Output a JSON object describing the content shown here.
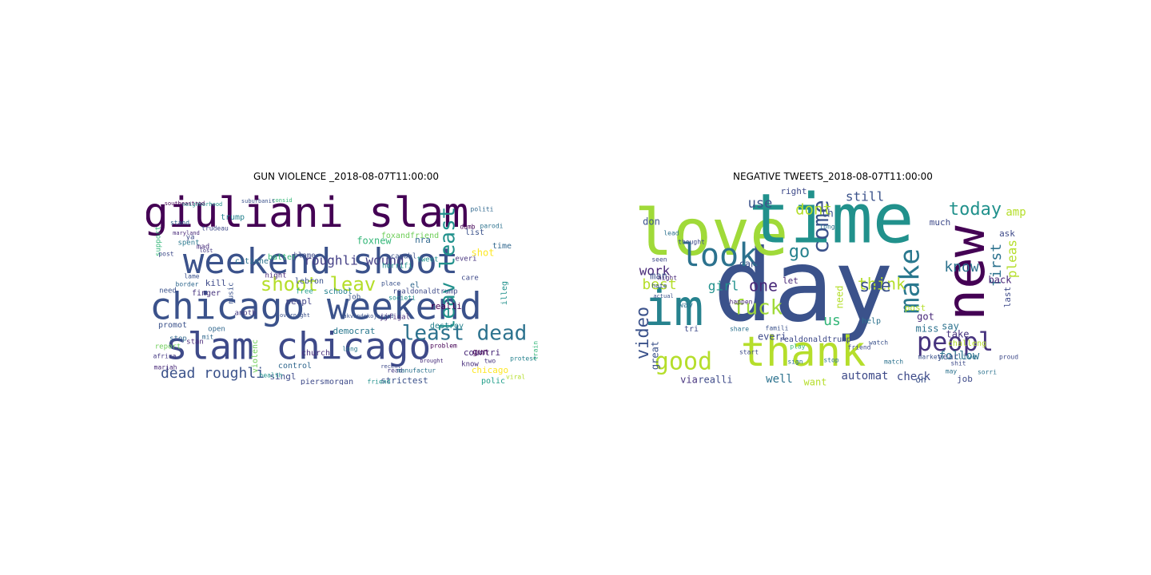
{
  "figure": {
    "panels": [
      {
        "title": "GUN VIOLENCE _2018-08-07T11:00:00",
        "words": [
          {
            "text": "giuliani slam",
            "color": "#440154"
          },
          {
            "text": "weekend shoot",
            "color": "#3b528b"
          },
          {
            "text": "chicago weekend",
            "color": "#3b528b"
          },
          {
            "text": "slam chicago",
            "color": "#3e4a89"
          },
          {
            "text": "shoot leav",
            "color": "#b5de2b"
          },
          {
            "text": "leav least",
            "color": "#21918c"
          },
          {
            "text": "least dead",
            "color": "#2c728e"
          },
          {
            "text": "dead roughli",
            "color": "#3b528b"
          },
          {
            "text": "roughli wound",
            "color": "#433e85"
          },
          {
            "text": "foxnew",
            "color": "#35b779"
          },
          {
            "text": "nra",
            "color": "#31688e"
          },
          {
            "text": "democrat",
            "color": "#2a788e"
          },
          {
            "text": "strictest",
            "color": "#3b528b"
          },
          {
            "text": "countri",
            "color": "#482878"
          },
          {
            "text": "chicago",
            "color": "#fde725"
          },
          {
            "text": "realli",
            "color": "#440154"
          },
          {
            "text": "destroy",
            "color": "#26828e"
          },
          {
            "text": "piersmorgan",
            "color": "#3e4a89"
          },
          {
            "text": "church",
            "color": "#472d7b"
          },
          {
            "text": "control",
            "color": "#31688e"
          },
          {
            "text": "polic",
            "color": "#1f9e89"
          },
          {
            "text": "gun",
            "color": "#440154"
          },
          {
            "text": "violenc",
            "color": "#6ece58"
          },
          {
            "text": "singl",
            "color": "#3e4a89"
          },
          {
            "text": "trump",
            "color": "#26828e"
          },
          {
            "text": "citione",
            "color": "#2c728e"
          },
          {
            "text": "batter",
            "color": "#35b779"
          },
          {
            "text": "capabl",
            "color": "#3b528b"
          },
          {
            "text": "tweet",
            "color": "#21918c"
          },
          {
            "text": "blame",
            "color": "#3e4a89"
          },
          {
            "text": "horrifi",
            "color": "#21918c"
          },
          {
            "text": "foxandfriend",
            "color": "#6ece58"
          },
          {
            "text": "promot",
            "color": "#3b528b"
          },
          {
            "text": "anoth",
            "color": "#443983"
          },
          {
            "text": "open",
            "color": "#31688e"
          },
          {
            "text": "kill",
            "color": "#3e4a89"
          },
          {
            "text": "finger",
            "color": "#46337e"
          },
          {
            "text": "school",
            "color": "#26828e"
          },
          {
            "text": "night",
            "color": "#482878"
          },
          {
            "text": "lebron",
            "color": "#3b528b"
          },
          {
            "text": "free",
            "color": "#1f9e89"
          },
          {
            "text": "peopl",
            "color": "#414487"
          },
          {
            "text": "shot",
            "color": "#fde725"
          },
          {
            "text": "list",
            "color": "#3b528b"
          },
          {
            "text": "time",
            "color": "#31688e"
          },
          {
            "text": "everi",
            "color": "#46337e"
          },
          {
            "text": "know",
            "color": "#472d7b"
          },
          {
            "text": "care",
            "color": "#3e4a89"
          },
          {
            "text": "illeg",
            "color": "#21918c"
          },
          {
            "text": "support",
            "color": "#35b779"
          },
          {
            "text": "post",
            "color": "#3e4a89"
          },
          {
            "text": "mad",
            "color": "#472d7b"
          },
          {
            "text": "spent",
            "color": "#2a788e"
          },
          {
            "text": "need",
            "color": "#3b528b"
          },
          {
            "text": "stop",
            "color": "#31688e"
          },
          {
            "text": "stan",
            "color": "#482878"
          },
          {
            "text": "report",
            "color": "#6ece58"
          },
          {
            "text": "africa",
            "color": "#443983"
          },
          {
            "text": "job",
            "color": "#3b528b"
          },
          {
            "text": "friend",
            "color": "#21918c"
          },
          {
            "text": "jjfigal",
            "color": "#472d7b"
          },
          {
            "text": "realdonaldtrump",
            "color": "#3e4a89"
          },
          {
            "text": "ya",
            "color": "#3e4a89"
          },
          {
            "text": "el",
            "color": "#31688e"
          },
          {
            "text": "parodi",
            "color": "#2c728e"
          },
          {
            "text": "train",
            "color": "#35b779"
          },
          {
            "text": "viral",
            "color": "#b5de2b"
          },
          {
            "text": "read",
            "color": "#443983"
          },
          {
            "text": "lame",
            "color": "#3b528b"
          },
          {
            "text": "mit",
            "color": "#31688e"
          },
          {
            "text": "two",
            "color": "#46337e"
          },
          {
            "text": "long",
            "color": "#2a788e"
          },
          {
            "text": "place",
            "color": "#3b528b"
          },
          {
            "text": "problem",
            "color": "#440154"
          },
          {
            "text": "border",
            "color": "#31688e"
          },
          {
            "text": "mariah",
            "color": "#482878"
          },
          {
            "text": "health",
            "color": "#21918c"
          },
          {
            "text": "music",
            "color": "#3b528b"
          },
          {
            "text": "protest",
            "color": "#26828e"
          },
          {
            "text": "trudeau",
            "color": "#3e4a89"
          },
          {
            "text": "consid",
            "color": "#35b779"
          },
          {
            "text": "suburbanit",
            "color": "#3b528b"
          },
          {
            "text": "neighborhood",
            "color": "#21918c"
          },
          {
            "text": "southeastrod",
            "color": "#440154"
          },
          {
            "text": "stand",
            "color": "#31688e"
          },
          {
            "text": "maryland",
            "color": "#482878"
          },
          {
            "text": "lost",
            "color": "#443983"
          },
          {
            "text": "overnight",
            "color": "#3b528b"
          },
          {
            "text": "manufactur",
            "color": "#2c728e"
          },
          {
            "text": "societi",
            "color": "#21918c"
          },
          {
            "text": "recent",
            "color": "#3e4a89"
          },
          {
            "text": "brought",
            "color": "#472d7b"
          },
          {
            "text": "akvandekojorand",
            "color": "#3b528b"
          },
          {
            "text": "dumb",
            "color": "#440154"
          },
          {
            "text": "politi",
            "color": "#31688e"
          },
          {
            "text": "thenli",
            "color": "#3e4a89"
          }
        ]
      },
      {
        "title": "NEGATIVE TWEETS_2018-08-07T11:00:00",
        "words": [
          {
            "text": "day",
            "color": "#3b528b"
          },
          {
            "text": "love",
            "color": "#a0da39"
          },
          {
            "text": "time",
            "color": "#21918c"
          },
          {
            "text": "im",
            "color": "#26828e"
          },
          {
            "text": "new",
            "color": "#440154"
          },
          {
            "text": "thank",
            "color": "#b5de2b"
          },
          {
            "text": "look",
            "color": "#2c728e"
          },
          {
            "text": "good",
            "color": "#b5de2b"
          },
          {
            "text": "make",
            "color": "#2a788e"
          },
          {
            "text": "peopl",
            "color": "#46337e"
          },
          {
            "text": "fuck",
            "color": "#a0da39"
          },
          {
            "text": "come",
            "color": "#3b528b"
          },
          {
            "text": "video",
            "color": "#3b528b"
          },
          {
            "text": "today",
            "color": "#21918c"
          },
          {
            "text": "first",
            "color": "#2c728e"
          },
          {
            "text": "pleas",
            "color": "#b5de2b"
          },
          {
            "text": "know",
            "color": "#2c728e"
          },
          {
            "text": "think",
            "color": "#b5de2b"
          },
          {
            "text": "see",
            "color": "#3b528b"
          },
          {
            "text": "dont",
            "color": "#b5de2b"
          },
          {
            "text": "one",
            "color": "#482878"
          },
          {
            "text": "best",
            "color": "#b5de2b"
          },
          {
            "text": "girl",
            "color": "#21918c"
          },
          {
            "text": "go",
            "color": "#26828e"
          },
          {
            "text": "use",
            "color": "#3b528b"
          },
          {
            "text": "still",
            "color": "#3b528b"
          },
          {
            "text": "work",
            "color": "#482878"
          },
          {
            "text": "us",
            "color": "#35b779"
          },
          {
            "text": "follow",
            "color": "#2c728e"
          },
          {
            "text": "automat",
            "color": "#3e4a89"
          },
          {
            "text": "check",
            "color": "#3e4a89"
          },
          {
            "text": "well",
            "color": "#2c728e"
          },
          {
            "text": "realli",
            "color": "#3e4a89"
          },
          {
            "text": "via",
            "color": "#46337e"
          },
          {
            "text": "want",
            "color": "#b5de2b"
          },
          {
            "text": "great",
            "color": "#3b528b"
          },
          {
            "text": "got",
            "color": "#482878"
          },
          {
            "text": "miss",
            "color": "#2c728e"
          },
          {
            "text": "take",
            "color": "#46337e"
          },
          {
            "text": "say",
            "color": "#2c728e"
          },
          {
            "text": "help",
            "color": "#2c728e"
          },
          {
            "text": "post",
            "color": "#b5de2b"
          },
          {
            "text": "much",
            "color": "#3e4a89"
          },
          {
            "text": "right",
            "color": "#3e4a89"
          },
          {
            "text": "amp",
            "color": "#b5de2b"
          },
          {
            "text": "ask",
            "color": "#3e4a89"
          },
          {
            "text": "back",
            "color": "#482878"
          },
          {
            "text": "year",
            "color": "#3b528b"
          },
          {
            "text": "oh",
            "color": "#3b528b"
          },
          {
            "text": "job",
            "color": "#3e4a89"
          },
          {
            "text": "cant",
            "color": "#3b528b"
          },
          {
            "text": "let",
            "color": "#482878"
          },
          {
            "text": "man",
            "color": "#3b528b"
          },
          {
            "text": "don",
            "color": "#3b528b"
          },
          {
            "text": "tri",
            "color": "#3e4a89"
          },
          {
            "text": "everi",
            "color": "#3e4a89"
          },
          {
            "text": "way",
            "color": "#2c728e"
          },
          {
            "text": "need",
            "color": "#b5de2b"
          },
          {
            "text": "th",
            "color": "#3b528b"
          },
          {
            "text": "last",
            "color": "#3e4a89"
          },
          {
            "text": "live",
            "color": "#2c728e"
          },
          {
            "text": "realdonaldtrump",
            "color": "#3e4a89"
          },
          {
            "text": "watch",
            "color": "#3b528b"
          },
          {
            "text": "match",
            "color": "#2c728e"
          },
          {
            "text": "challeng",
            "color": "#b5de2b"
          },
          {
            "text": "proud",
            "color": "#3e4a89"
          },
          {
            "text": "sorri",
            "color": "#2c728e"
          },
          {
            "text": "friend",
            "color": "#3e4a89"
          },
          {
            "text": "stop",
            "color": "#2c728e"
          },
          {
            "text": "night",
            "color": "#482878"
          },
          {
            "text": "hate",
            "color": "#3b528b"
          },
          {
            "text": "sign",
            "color": "#2c728e"
          },
          {
            "text": "thought",
            "color": "#3e4a89"
          },
          {
            "text": "actual",
            "color": "#3b528b"
          },
          {
            "text": "play",
            "color": "#35b779"
          },
          {
            "text": "share",
            "color": "#2c728e"
          },
          {
            "text": "start",
            "color": "#3e4a89"
          },
          {
            "text": "happen",
            "color": "#482878"
          },
          {
            "text": "famili",
            "color": "#3b528b"
          },
          {
            "text": "may",
            "color": "#2c728e"
          },
          {
            "text": "shit",
            "color": "#3e4a89"
          },
          {
            "text": "long",
            "color": "#2c728e"
          },
          {
            "text": "market",
            "color": "#3b528b"
          },
          {
            "text": "seen",
            "color": "#3e4a89"
          },
          {
            "text": "lead",
            "color": "#2c728e"
          }
        ]
      }
    ]
  }
}
